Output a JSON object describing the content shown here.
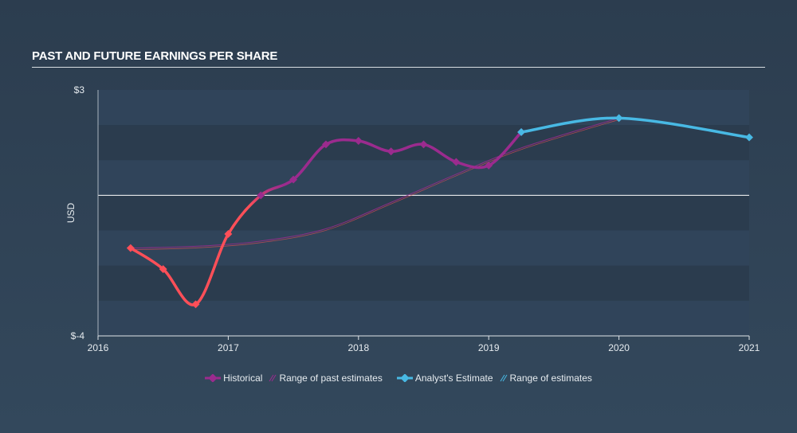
{
  "title": "PAST AND FUTURE EARNINGS PER SHARE",
  "colors": {
    "historical": "#9b2b8e",
    "historical_negative": "#ff4f58",
    "estimate": "#48b9e4",
    "text": "#e6ebef",
    "title_rule": "#d9dee3"
  },
  "legend": {
    "historical": "Historical",
    "past_range": "Range of past estimates",
    "analyst_estimate": "Analyst's Estimate",
    "range": "Range of estimates"
  },
  "chart_data": {
    "type": "line",
    "ylabel": "USD",
    "ylim": [
      -4,
      3
    ],
    "ytick_labels": [
      "$3",
      "$-4"
    ],
    "xlim": [
      2016,
      2021
    ],
    "xticks": [
      "2016",
      "2017",
      "2018",
      "2019",
      "2020",
      "2021"
    ],
    "series": [
      {
        "name": "Historical",
        "x": [
          2016.25,
          2016.5,
          2016.75,
          2017.0,
          2017.25,
          2017.5,
          2017.75,
          2018.0,
          2018.25,
          2018.5,
          2018.75,
          2019.0,
          2019.25
        ],
        "y": [
          -1.5,
          -2.1,
          -3.1,
          -1.1,
          0.0,
          0.45,
          1.45,
          1.55,
          1.25,
          1.45,
          0.95,
          0.85,
          1.8
        ]
      },
      {
        "name": "Range of past estimates",
        "x": [
          2016.25,
          2016.75,
          2017.25,
          2017.75,
          2018.25,
          2018.75,
          2019.25,
          2020.0
        ],
        "y": [
          -1.5,
          -1.45,
          -1.3,
          -0.95,
          -0.2,
          0.6,
          1.35,
          2.2
        ]
      },
      {
        "name": "Analyst's Estimate",
        "x": [
          2019.25,
          2020.0,
          2021.0
        ],
        "y": [
          1.8,
          2.2,
          1.65
        ]
      }
    ]
  }
}
